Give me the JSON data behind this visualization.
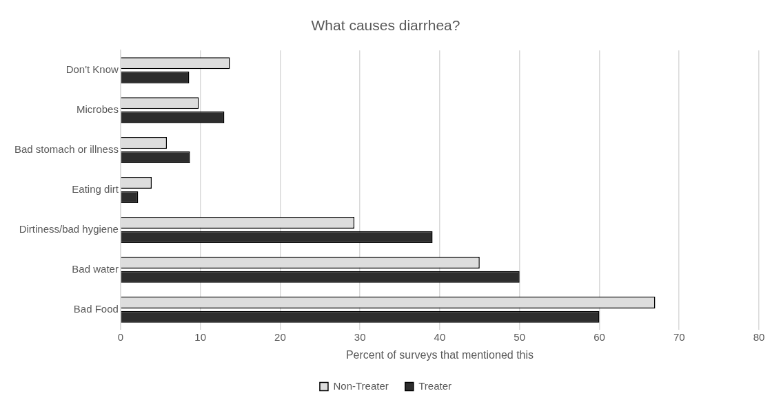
{
  "chart_data": {
    "type": "bar",
    "orientation": "horizontal",
    "title": "What causes diarrhea?",
    "xlabel": "Percent of surveys that mentioned this",
    "categories": [
      "Don't Know",
      "Microbes",
      "Bad stomach or illness",
      "Eating dirt",
      "Dirtiness/bad hygiene",
      "Bad water",
      "Bad Food"
    ],
    "series": [
      {
        "name": "Non-Treater",
        "color": "#dddddd",
        "values": [
          13.7,
          9.8,
          5.8,
          3.9,
          29.3,
          45.0,
          67.0
        ]
      },
      {
        "name": "Treater",
        "color": "#2d2d2d",
        "values": [
          8.6,
          13.0,
          8.7,
          2.2,
          39.1,
          50.0,
          60.0
        ]
      }
    ],
    "xlim": [
      0,
      80
    ],
    "xticks": [
      0,
      10,
      20,
      30,
      40,
      50,
      60,
      70,
      80
    ],
    "grid": "x",
    "legend": "bottom"
  }
}
